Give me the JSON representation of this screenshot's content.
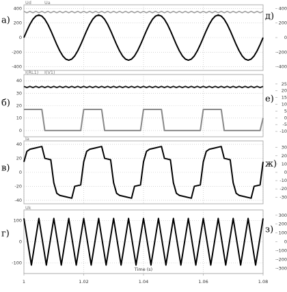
{
  "chart_data": [
    {
      "type": "line",
      "xlim": [
        1,
        1.08
      ],
      "ylim": [
        -450,
        450
      ],
      "yticks": [
        400,
        200,
        0,
        -200,
        -400
      ],
      "grid": true,
      "x": [
        1,
        1.001,
        1.002,
        1.003,
        1.004,
        1.005,
        1.006,
        1.007,
        1.008,
        1.009,
        1.01,
        1.011,
        1.012,
        1.013,
        1.014,
        1.015,
        1.016,
        1.017,
        1.018,
        1.019,
        1.02,
        1.021,
        1.022,
        1.023,
        1.024,
        1.025,
        1.026,
        1.027,
        1.028,
        1.029,
        1.03,
        1.031,
        1.032,
        1.033,
        1.034,
        1.035,
        1.036,
        1.037,
        1.038,
        1.039,
        1.04,
        1.041,
        1.042,
        1.043,
        1.044,
        1.045,
        1.046,
        1.047,
        1.048,
        1.049,
        1.05,
        1.051,
        1.052,
        1.053,
        1.054,
        1.055,
        1.056,
        1.057,
        1.058,
        1.059,
        1.06,
        1.061,
        1.062,
        1.063,
        1.064,
        1.065,
        1.066,
        1.067,
        1.068,
        1.069,
        1.07,
        1.071,
        1.072,
        1.073,
        1.074,
        1.075,
        1.076,
        1.077,
        1.078,
        1.079,
        1.08
      ],
      "series": [
        {
          "name": "Ud",
          "color": "#999999",
          "width": 1.5,
          "values": [
            360,
            340,
            360,
            340,
            360,
            340,
            360,
            340,
            360,
            340,
            360,
            340,
            360,
            340,
            360,
            340,
            360,
            340,
            360,
            340,
            360,
            340,
            360,
            340,
            360,
            340,
            360,
            340,
            360,
            340,
            360,
            340,
            360,
            340,
            360,
            340,
            360,
            340,
            360,
            340,
            360,
            340,
            360,
            340,
            360,
            340,
            360,
            340,
            360,
            340,
            360,
            340,
            360,
            340,
            360,
            340,
            360,
            340,
            360,
            340,
            360,
            340,
            360,
            340,
            360,
            340,
            360,
            340,
            360,
            340,
            360,
            340,
            360,
            340,
            360,
            340,
            360,
            340,
            360,
            340,
            360
          ]
        },
        {
          "name": "Ua",
          "color": "#000000",
          "width": 2,
          "values": [
            0,
            96,
            182,
            251,
            295,
            310,
            295,
            251,
            182,
            96,
            0,
            -96,
            -182,
            -251,
            -295,
            -310,
            -295,
            -251,
            -182,
            -96,
            0,
            96,
            182,
            251,
            295,
            310,
            295,
            251,
            182,
            96,
            0,
            -96,
            -182,
            -251,
            -295,
            -310,
            -295,
            -251,
            -182,
            -96,
            0,
            96,
            182,
            251,
            295,
            310,
            295,
            251,
            182,
            96,
            0,
            -96,
            -182,
            -251,
            -295,
            -310,
            -295,
            -251,
            -182,
            -96,
            0,
            96,
            182,
            251,
            295,
            310,
            295,
            251,
            182,
            96,
            0,
            -96,
            -182,
            -251,
            -295,
            -310,
            -295,
            -251,
            -182,
            -96,
            0
          ]
        }
      ]
    },
    {
      "type": "line",
      "xlim": [
        1,
        1.08
      ],
      "ylim": [
        -5,
        45
      ],
      "yticks": [
        40,
        30,
        20,
        10,
        0
      ],
      "grid": true,
      "x": [
        1,
        1.001,
        1.002,
        1.003,
        1.004,
        1.005,
        1.006,
        1.007,
        1.008,
        1.009,
        1.01,
        1.011,
        1.012,
        1.013,
        1.014,
        1.015,
        1.016,
        1.017,
        1.018,
        1.019,
        1.02,
        1.021,
        1.022,
        1.023,
        1.024,
        1.025,
        1.026,
        1.027,
        1.028,
        1.029,
        1.03,
        1.031,
        1.032,
        1.033,
        1.034,
        1.035,
        1.036,
        1.037,
        1.038,
        1.039,
        1.04,
        1.041,
        1.042,
        1.043,
        1.044,
        1.045,
        1.046,
        1.047,
        1.048,
        1.049,
        1.05,
        1.051,
        1.052,
        1.053,
        1.054,
        1.055,
        1.056,
        1.057,
        1.058,
        1.059,
        1.06,
        1.061,
        1.062,
        1.063,
        1.064,
        1.065,
        1.066,
        1.067,
        1.068,
        1.069,
        1.07,
        1.071,
        1.072,
        1.073,
        1.074,
        1.075,
        1.076,
        1.077,
        1.078,
        1.079,
        1.08
      ],
      "series": [
        {
          "name": "I(RL1)",
          "color": "#222222",
          "width": 2,
          "values": [
            35.5,
            34.5,
            35.5,
            34.5,
            35.5,
            34.5,
            35.5,
            34.5,
            35.5,
            34.5,
            35.5,
            34.5,
            35.5,
            34.5,
            35.5,
            34.5,
            35.5,
            34.5,
            35.5,
            34.5,
            35.5,
            34.5,
            35.5,
            34.5,
            35.5,
            34.5,
            35.5,
            34.5,
            35.5,
            34.5,
            35.5,
            34.5,
            35.5,
            34.5,
            35.5,
            34.5,
            35.5,
            34.5,
            35.5,
            34.5,
            35.5,
            34.5,
            35.5,
            34.5,
            35.5,
            34.5,
            35.5,
            34.5,
            35.5,
            34.5,
            35.5,
            34.5,
            35.5,
            34.5,
            35.5,
            34.5,
            35.5,
            34.5,
            35.5,
            34.5,
            35.5,
            34.5,
            35.5,
            34.5,
            35.5,
            34.5,
            35.5,
            34.5,
            35.5,
            34.5,
            35.5,
            34.5,
            35.5,
            34.5,
            35.5,
            34.5,
            35.5,
            34.5,
            35.5,
            34.5,
            35.5
          ]
        },
        {
          "name": "I(V1)",
          "color": "#888888",
          "width": 2,
          "values": [
            17,
            17,
            17,
            17,
            17,
            17,
            17,
            0,
            0,
            0,
            0,
            0,
            0,
            0,
            0,
            0,
            0,
            0,
            0,
            0,
            17,
            17,
            17,
            17,
            17,
            17,
            17,
            0,
            0,
            0,
            0,
            0,
            0,
            0,
            0,
            0,
            0,
            0,
            0,
            0,
            17,
            17,
            17,
            17,
            17,
            17,
            17,
            0,
            0,
            0,
            0,
            0,
            0,
            0,
            0,
            0,
            0,
            0,
            0,
            0,
            17,
            17,
            17,
            17,
            17,
            17,
            17,
            0,
            0,
            0,
            0,
            0,
            0,
            0,
            0,
            0,
            0,
            0,
            0,
            0,
            10
          ]
        }
      ]
    },
    {
      "type": "line",
      "xlim": [
        1,
        1.08
      ],
      "ylim": [
        -45,
        45
      ],
      "yticks": [
        40,
        20,
        0,
        -20,
        -40
      ],
      "grid": true,
      "x": [
        1,
        1.001,
        1.002,
        1.003,
        1.004,
        1.005,
        1.006,
        1.007,
        1.008,
        1.009,
        1.01,
        1.011,
        1.012,
        1.013,
        1.014,
        1.015,
        1.016,
        1.017,
        1.018,
        1.019,
        1.02,
        1.021,
        1.022,
        1.023,
        1.024,
        1.025,
        1.026,
        1.027,
        1.028,
        1.029,
        1.03,
        1.031,
        1.032,
        1.033,
        1.034,
        1.035,
        1.036,
        1.037,
        1.038,
        1.039,
        1.04,
        1.041,
        1.042,
        1.043,
        1.044,
        1.045,
        1.046,
        1.047,
        1.048,
        1.049,
        1.05,
        1.051,
        1.052,
        1.053,
        1.054,
        1.055,
        1.056,
        1.057,
        1.058,
        1.059,
        1.06,
        1.061,
        1.062,
        1.063,
        1.064,
        1.065,
        1.066,
        1.067,
        1.068,
        1.069,
        1.07,
        1.071,
        1.072,
        1.073,
        1.074,
        1.075,
        1.076,
        1.077,
        1.078,
        1.079,
        1.08
      ],
      "series": [
        {
          "name": "Ia",
          "color": "#000000",
          "width": 2,
          "values": [
            15,
            30,
            33,
            34,
            35,
            36,
            37,
            20,
            19,
            18,
            -15,
            -30,
            -33,
            -34,
            -35,
            -36,
            -37,
            -20,
            -19,
            -18,
            15,
            30,
            33,
            34,
            35,
            36,
            37,
            20,
            19,
            18,
            -15,
            -30,
            -33,
            -34,
            -35,
            -36,
            -37,
            -20,
            -19,
            -18,
            15,
            30,
            33,
            34,
            35,
            36,
            37,
            20,
            19,
            18,
            -15,
            -30,
            -33,
            -34,
            -35,
            -36,
            -37,
            -20,
            -19,
            -18,
            15,
            30,
            33,
            34,
            35,
            36,
            37,
            20,
            19,
            18,
            -15,
            -30,
            -33,
            -34,
            -35,
            -36,
            -37,
            -20,
            -19,
            -18,
            15
          ]
        }
      ]
    },
    {
      "type": "line",
      "xlim": [
        1,
        1.08
      ],
      "ylim": [
        -150,
        150
      ],
      "yticks": [
        100,
        0,
        -100
      ],
      "grid": true,
      "xticks": [
        1,
        1.02,
        1.04,
        1.06,
        1.08
      ],
      "xlabel": "Time (s)",
      "x": [
        1,
        1.00125,
        1.0025,
        1.00375,
        1.005,
        1.00625,
        1.0075,
        1.00875,
        1.01,
        1.01125,
        1.0125,
        1.01375,
        1.015,
        1.01625,
        1.0175,
        1.01875,
        1.02,
        1.02125,
        1.0225,
        1.02375,
        1.025,
        1.02625,
        1.0275,
        1.02875,
        1.03,
        1.03125,
        1.0325,
        1.03375,
        1.035,
        1.03625,
        1.0375,
        1.03875,
        1.04,
        1.04125,
        1.0425,
        1.04375,
        1.045,
        1.04625,
        1.0475,
        1.04875,
        1.05,
        1.05125,
        1.0525,
        1.05375,
        1.055,
        1.05625,
        1.0575,
        1.05875,
        1.06,
        1.06125,
        1.0625,
        1.06375,
        1.065,
        1.06625,
        1.0675,
        1.06875,
        1.07,
        1.07125,
        1.0725,
        1.07375,
        1.075,
        1.07625,
        1.0775,
        1.07875,
        1.08
      ],
      "series": [
        {
          "name": "Uk",
          "color": "#000000",
          "width": 2,
          "values": [
            110,
            0,
            -110,
            0,
            110,
            0,
            -110,
            0,
            110,
            0,
            -110,
            0,
            110,
            0,
            -110,
            0,
            110,
            0,
            -110,
            0,
            110,
            0,
            -110,
            0,
            110,
            0,
            -110,
            0,
            110,
            0,
            -110,
            0,
            110,
            0,
            -110,
            0,
            110,
            0,
            -110,
            0,
            110,
            0,
            -110,
            0,
            110,
            0,
            -110,
            0,
            110,
            0,
            -110,
            0,
            110,
            0,
            -110,
            0,
            110,
            0,
            -110,
            0,
            110,
            0,
            -110,
            0,
            110
          ]
        }
      ]
    }
  ],
  "panel_labels": [
    "а)",
    "б)",
    "в)",
    "г)"
  ],
  "right_axes": [
    {
      "label": "д)",
      "ylim": [
        -450,
        450
      ],
      "yticks": [
        400,
        200,
        0,
        -200,
        -400
      ]
    },
    {
      "label": "е)",
      "ylim": [
        -14,
        32
      ],
      "yticks": [
        25,
        20,
        15,
        10,
        5,
        0,
        -5,
        -10
      ]
    },
    {
      "label": "ж)",
      "ylim": [
        -38,
        38
      ],
      "yticks": [
        30,
        20,
        10,
        0,
        -10,
        -20,
        -30
      ]
    },
    {
      "label": "з)",
      "ylim": [
        -360,
        360
      ],
      "yticks": [
        300,
        200,
        100,
        0,
        -100,
        -200,
        -300
      ]
    }
  ]
}
